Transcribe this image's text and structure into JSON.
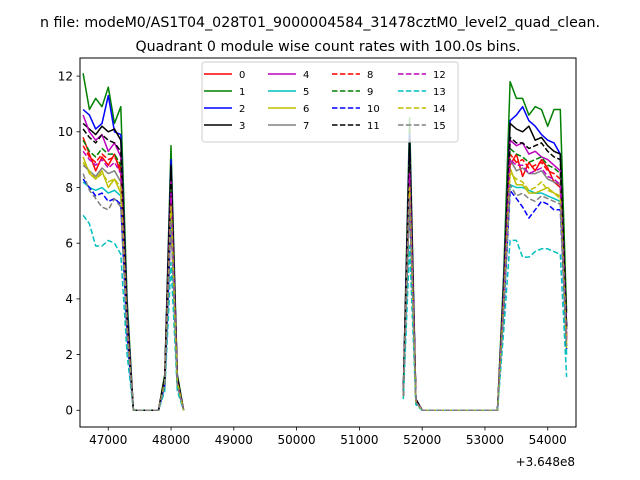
{
  "figure": {
    "suptitle": "n file: modeM0/AS1T04_028T01_9000004584_31478cztM0_level2_quad_clean.",
    "title": "Quadrant 0 module wise count rates with 100.0s bins.",
    "offset_text": "+3.648e8"
  },
  "chart_data": {
    "type": "line",
    "title": "Quadrant 0 module wise count rates with 100.0s bins.",
    "xlabel": "",
    "ylabel": "",
    "x_offset": 364800000,
    "xlim": [
      46550,
      54450
    ],
    "ylim": [
      -0.6,
      12.65
    ],
    "xticks": [
      47000,
      48000,
      49000,
      50000,
      51000,
      52000,
      53000,
      54000
    ],
    "yticks": [
      0,
      2,
      4,
      6,
      8,
      10,
      12
    ],
    "xtick_labels": [
      "47000",
      "48000",
      "49000",
      "50000",
      "51000",
      "52000",
      "53000",
      "54000"
    ],
    "ytick_labels": [
      "0",
      "2",
      "4",
      "6",
      "8",
      "10",
      "12"
    ],
    "grid": false,
    "legend": {
      "location": "upper center",
      "columns": 4
    },
    "segments": [
      {
        "x": [
          46600,
          46700,
          46800,
          46900,
          47000,
          47100,
          47200,
          47300,
          47400,
          47600,
          47800,
          47900,
          48000,
          48100,
          48200
        ]
      },
      {
        "x": [
          51700,
          51800,
          51900,
          52000,
          52100,
          53200,
          53300,
          53400,
          53500,
          53600,
          53700,
          53800,
          53900,
          54000,
          54100,
          54200,
          54300
        ]
      }
    ],
    "series": [
      {
        "name": "0",
        "color": "#ff0000",
        "dash": false,
        "seg0": [
          9.8,
          9.2,
          8.6,
          9.1,
          8.8,
          9.2,
          8.5,
          3.0,
          0,
          0,
          0,
          1.0,
          6.9,
          1.0,
          0
        ],
        "seg1": [
          0.5,
          7.8,
          0.3,
          0,
          0,
          0,
          4.0,
          8.8,
          9.2,
          8.4,
          8.9,
          8.6,
          9.0,
          8.7,
          8.2,
          8.0,
          2.5
        ]
      },
      {
        "name": "1",
        "color": "#008000",
        "dash": false,
        "seg0": [
          12.1,
          10.8,
          11.2,
          10.9,
          11.6,
          10.3,
          10.9,
          4.0,
          0,
          0,
          0,
          1.3,
          9.5,
          1.3,
          0
        ],
        "seg1": [
          0.7,
          10.5,
          0.4,
          0,
          0,
          0,
          5.0,
          11.8,
          11.2,
          11.2,
          10.6,
          10.9,
          10.8,
          10.2,
          10.8,
          10.8,
          3.5
        ]
      },
      {
        "name": "2",
        "color": "#0000ff",
        "dash": false,
        "seg0": [
          10.8,
          10.6,
          10.1,
          10.3,
          11.3,
          10.0,
          9.9,
          3.6,
          0,
          0,
          0,
          1.2,
          9.0,
          1.2,
          0
        ],
        "seg1": [
          0.6,
          9.9,
          0.4,
          0,
          0,
          0,
          4.6,
          10.4,
          10.6,
          10.9,
          10.4,
          10.2,
          9.9,
          9.7,
          9.6,
          9.2,
          3.0
        ]
      },
      {
        "name": "3",
        "color": "#000000",
        "dash": false,
        "seg0": [
          10.3,
          10.1,
          9.9,
          10.2,
          10.0,
          10.1,
          9.7,
          3.4,
          0,
          0,
          0,
          1.2,
          8.8,
          1.2,
          0
        ],
        "seg1": [
          0.6,
          9.7,
          0.4,
          0,
          0,
          0,
          4.4,
          10.3,
          10.1,
          10.0,
          10.2,
          9.7,
          9.8,
          9.5,
          9.3,
          9.2,
          3.0
        ]
      },
      {
        "name": "4",
        "color": "#bf00bf",
        "dash": false,
        "seg0": [
          10.6,
          10.0,
          9.7,
          9.9,
          9.3,
          9.6,
          9.1,
          3.3,
          0,
          0,
          0,
          1.1,
          8.3,
          1.1,
          0
        ],
        "seg1": [
          0.6,
          9.1,
          0.4,
          0,
          0,
          0,
          4.3,
          9.7,
          9.5,
          9.6,
          9.2,
          9.3,
          9.1,
          9.0,
          8.8,
          8.6,
          2.9
        ]
      },
      {
        "name": "5",
        "color": "#00bfbf",
        "dash": false,
        "seg0": [
          8.2,
          8.0,
          7.9,
          8.0,
          7.8,
          7.9,
          7.7,
          2.7,
          0,
          0,
          0,
          0.9,
          7.2,
          0.9,
          0
        ],
        "seg1": [
          0.5,
          7.8,
          0.3,
          0,
          0,
          0,
          3.6,
          8.1,
          8.0,
          8.0,
          7.9,
          7.8,
          7.8,
          7.7,
          7.6,
          7.5,
          2.0
        ]
      },
      {
        "name": "6",
        "color": "#bfbf00",
        "dash": false,
        "seg0": [
          9.1,
          8.5,
          8.3,
          8.6,
          8.0,
          8.3,
          7.8,
          2.8,
          0,
          0,
          0,
          1.0,
          7.0,
          1.0,
          0
        ],
        "seg1": [
          0.5,
          7.7,
          0.3,
          0,
          0,
          0,
          3.8,
          8.7,
          8.1,
          8.1,
          7.8,
          7.8,
          7.9,
          8.0,
          7.8,
          7.7,
          2.2
        ]
      },
      {
        "name": "7",
        "color": "#808080",
        "dash": false,
        "seg0": [
          8.8,
          8.6,
          8.4,
          8.7,
          8.5,
          8.6,
          8.2,
          3.0,
          0,
          0,
          0,
          1.0,
          7.6,
          1.0,
          0
        ],
        "seg1": [
          0.5,
          8.2,
          0.3,
          0,
          0,
          0,
          4.0,
          9.0,
          8.6,
          8.7,
          8.5,
          8.5,
          8.6,
          8.3,
          8.2,
          8.1,
          2.6
        ]
      },
      {
        "name": "8",
        "color": "#ff0000",
        "dash": true,
        "seg0": [
          9.5,
          9.1,
          8.9,
          9.2,
          9.0,
          9.1,
          8.7,
          3.1,
          0,
          0,
          0,
          1.1,
          7.9,
          1.1,
          0
        ],
        "seg1": [
          0.5,
          8.6,
          0.3,
          0,
          0,
          0,
          4.1,
          9.2,
          8.9,
          9.0,
          8.7,
          8.8,
          8.9,
          8.6,
          8.5,
          8.3,
          2.7
        ]
      },
      {
        "name": "9",
        "color": "#008000",
        "dash": true,
        "seg0": [
          9.7,
          9.3,
          9.1,
          9.4,
          9.2,
          9.2,
          8.8,
          3.2,
          0,
          0,
          0,
          1.1,
          8.1,
          1.1,
          0
        ],
        "seg1": [
          0.5,
          8.9,
          0.3,
          0,
          0,
          0,
          4.2,
          9.4,
          9.2,
          9.1,
          8.9,
          9.0,
          9.1,
          8.8,
          8.7,
          8.5,
          2.8
        ]
      },
      {
        "name": "10",
        "color": "#0000ff",
        "dash": true,
        "seg0": [
          8.3,
          8.0,
          7.7,
          7.8,
          7.5,
          7.6,
          7.4,
          2.7,
          0,
          0,
          0,
          0.9,
          6.9,
          0.9,
          0
        ],
        "seg1": [
          0.5,
          7.5,
          0.3,
          0,
          0,
          0,
          3.6,
          7.9,
          7.6,
          7.3,
          6.9,
          7.2,
          7.5,
          7.4,
          7.2,
          7.2,
          2.2
        ]
      },
      {
        "name": "11",
        "color": "#000000",
        "dash": true,
        "seg0": [
          10.1,
          9.8,
          9.6,
          9.9,
          9.7,
          9.6,
          9.3,
          3.4,
          0,
          0,
          0,
          1.2,
          8.6,
          1.2,
          0
        ],
        "seg1": [
          0.6,
          9.4,
          0.4,
          0,
          0,
          0,
          4.4,
          9.8,
          9.6,
          9.6,
          9.4,
          9.5,
          9.6,
          9.3,
          9.1,
          9.0,
          3.0
        ]
      },
      {
        "name": "12",
        "color": "#bf00bf",
        "dash": true,
        "seg0": [
          9.3,
          9.0,
          8.8,
          9.0,
          8.7,
          8.9,
          8.5,
          3.1,
          0,
          0,
          0,
          1.0,
          7.8,
          1.0,
          0
        ],
        "seg1": [
          0.5,
          8.5,
          0.3,
          0,
          0,
          0,
          4.0,
          9.0,
          8.8,
          8.8,
          8.5,
          8.6,
          8.7,
          8.4,
          8.3,
          8.1,
          2.6
        ]
      },
      {
        "name": "13",
        "color": "#00bfbf",
        "dash": true,
        "seg0": [
          7.0,
          6.7,
          5.9,
          5.9,
          6.1,
          6.0,
          5.6,
          2.0,
          0,
          0,
          0,
          0.7,
          5.3,
          0.7,
          0
        ],
        "seg1": [
          0.4,
          5.9,
          0.2,
          0,
          0,
          0,
          2.9,
          6.1,
          6.1,
          5.5,
          5.5,
          5.7,
          5.8,
          5.8,
          5.7,
          5.6,
          1.2
        ]
      },
      {
        "name": "14",
        "color": "#bfbf00",
        "dash": true,
        "seg0": [
          8.9,
          8.6,
          8.3,
          8.5,
          8.2,
          8.3,
          8.0,
          2.9,
          0,
          0,
          0,
          1.0,
          7.3,
          1.0,
          0
        ],
        "seg1": [
          0.5,
          8.0,
          0.3,
          0,
          0,
          0,
          3.9,
          8.5,
          8.3,
          8.2,
          7.9,
          8.0,
          8.2,
          7.9,
          7.8,
          7.6,
          2.4
        ]
      },
      {
        "name": "15",
        "color": "#808080",
        "dash": true,
        "seg0": [
          8.5,
          7.9,
          7.6,
          7.3,
          7.2,
          7.6,
          7.3,
          2.7,
          0,
          0,
          0,
          0.9,
          6.8,
          0.9,
          0
        ],
        "seg1": [
          0.5,
          7.6,
          0.3,
          0,
          0,
          0,
          3.7,
          8.1,
          7.7,
          7.8,
          7.6,
          7.5,
          7.7,
          7.6,
          7.5,
          7.4,
          2.3
        ]
      }
    ]
  }
}
